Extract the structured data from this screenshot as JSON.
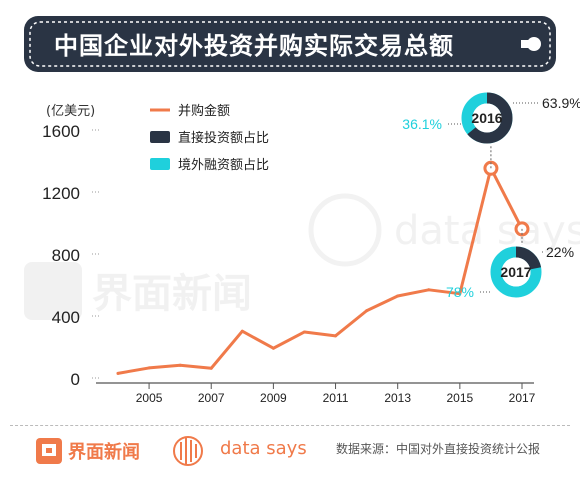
{
  "header": {
    "title": "中国企业对外投资并购实际交易总额"
  },
  "unit": "(亿美元)",
  "legend": [
    {
      "label": "并购金额",
      "color": "#f07a4a",
      "kind": "line"
    },
    {
      "label": "直接投资额占比",
      "color": "#2a3444",
      "kind": "box"
    },
    {
      "label": "境外融资额占比",
      "color": "#1fd0dc",
      "kind": "box"
    }
  ],
  "footer": {
    "brand1": "界面新闻",
    "brand2": "data says",
    "source": "数据来源：中国对外直接投资统计公报"
  },
  "watermark": {
    "brand1": "界面新闻",
    "brand2": "data says"
  },
  "chart_data": {
    "type": "line",
    "title": "中国企业对外投资并购实际交易总额",
    "ylabel": "(亿美元)",
    "ylim": [
      0,
      1600
    ],
    "yticks": [
      0,
      400,
      800,
      1200,
      1600
    ],
    "xticks": [
      2005,
      2007,
      2009,
      2011,
      2013,
      2015,
      2017
    ],
    "series": [
      {
        "name": "并购金额",
        "color": "#f07a4a",
        "x": [
          2004,
          2005,
          2006,
          2007,
          2008,
          2009,
          2010,
          2011,
          2012,
          2013,
          2014,
          2015,
          2016,
          2017
        ],
        "values": [
          30,
          65,
          82,
          63,
          302,
          192,
          297,
          272,
          434,
          529,
          569,
          544,
          1353,
          962
        ]
      }
    ],
    "donuts": [
      {
        "year": "2016",
        "at_x": 2016,
        "direct_pct": 63.9,
        "financing_pct": 36.1,
        "direct_label": "63.9%",
        "financing_label": "36.1%"
      },
      {
        "year": "2017",
        "at_x": 2017,
        "direct_pct": 22,
        "financing_pct": 78,
        "direct_label": "22%",
        "financing_label": "78%"
      }
    ],
    "colors": {
      "line": "#f07a4a",
      "direct": "#2a3444",
      "financing": "#1fd0dc",
      "banner": "#2a3444"
    }
  }
}
